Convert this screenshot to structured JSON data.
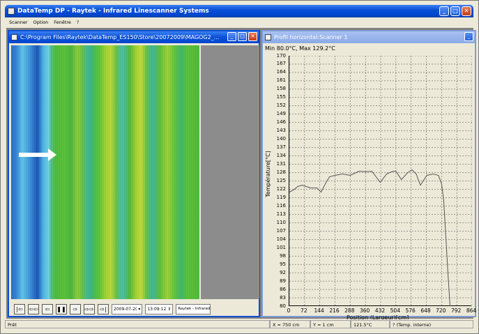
{
  "app": {
    "title": "DataTemp DP - Raytek - Infrared Linescanner Systems",
    "menu": [
      "Scanner",
      "Option",
      "Fenêtre",
      "?"
    ]
  },
  "left_window": {
    "title": "C:\\Program Files\\Raytek\\DataTemp_ES150\\Store\\20072009\\MAGOG2_...",
    "date_value": "2009-07-2(",
    "time_value": "13:09:12",
    "info_label": "Raytek - Infrared Linesca"
  },
  "right_window": {
    "title": "Profil horizontal:Scanner 1",
    "minmax": "Min  80.0°C, Max  129.2°C"
  },
  "status": {
    "left": "Prêt",
    "x": "X = 750 cm",
    "y": "Y = 1 cm",
    "temp": "121.5°C",
    "note": "? (Temp. interne)"
  },
  "colors": {
    "titlebar": "#0a4fd6",
    "profile_line": "#555555"
  },
  "chart_data": {
    "type": "line",
    "xlabel": "Position (Largeur)[cm]",
    "ylabel": "Température[°C]",
    "xlim": [
      0,
      864
    ],
    "ylim": [
      80,
      170
    ],
    "x_ticks": [
      "0",
      "72",
      "144",
      "216",
      "288",
      "360",
      "432",
      "504",
      "576",
      "648",
      "720",
      "792",
      "864"
    ],
    "y_ticks": [
      "80",
      "83",
      "86",
      "89",
      "92",
      "95",
      "98",
      "101",
      "104",
      "107",
      "110",
      "113",
      "116",
      "119",
      "122",
      "125",
      "128",
      "131",
      "134",
      "137",
      "140",
      "143",
      "146",
      "149",
      "152",
      "155",
      "158",
      "161",
      "164",
      "167",
      "170"
    ],
    "grid": true,
    "series": [
      {
        "x": [
          0,
          20,
          40,
          60,
          80,
          100,
          130,
          150,
          170,
          190,
          216,
          250,
          288,
          330,
          360,
          390,
          430,
          460,
          490,
          504,
          530,
          560,
          580,
          600,
          620,
          650,
          680,
          705,
          720,
          730,
          740,
          750,
          760
        ],
        "y": [
          121,
          121.8,
          123,
          123.5,
          123,
          122.5,
          122.5,
          121,
          124,
          126.5,
          127,
          127.5,
          127,
          128.5,
          128.3,
          128.5,
          124.5,
          127.5,
          128.5,
          128.5,
          125.5,
          128,
          129,
          127.5,
          123.5,
          127,
          127.5,
          127,
          124,
          118,
          105,
          92,
          80
        ]
      }
    ]
  }
}
